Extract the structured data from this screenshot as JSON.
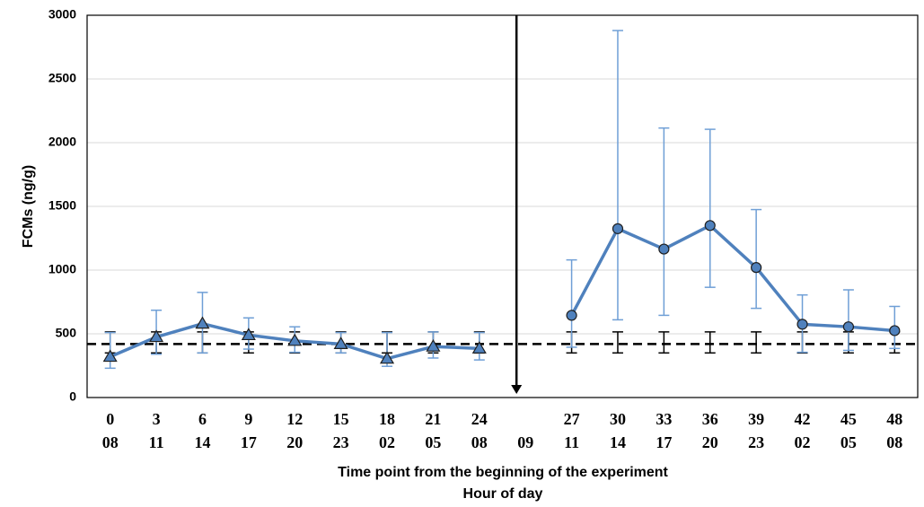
{
  "chart_data": {
    "type": "line",
    "y_label": "FCMs (ng/g)",
    "x_label": "Time point from the beginning of the experiment",
    "x_label_2": "Hour of day",
    "categories": [
      "0",
      "3",
      "6",
      "9",
      "12",
      "15",
      "18",
      "21",
      "24",
      null,
      "27",
      "30",
      "33",
      "36",
      "39",
      "42",
      "45",
      "48"
    ],
    "hours": [
      "08",
      "11",
      "14",
      "17",
      "20",
      "23",
      "02",
      "05",
      "08",
      "09",
      "11",
      "14",
      "17",
      "20",
      "23",
      "02",
      "05",
      "08"
    ],
    "ylim": [
      0,
      3000
    ],
    "yticks": [
      0,
      500,
      1000,
      1500,
      2000,
      2500,
      3000
    ],
    "grid": true,
    "series": [
      {
        "color": "#4f81bd",
        "error_color": "#6f9fd6",
        "marker": "triangle",
        "values": [
          320,
          475,
          580,
          490,
          445,
          420,
          305,
          400,
          385,
          null,
          null,
          null,
          null,
          null,
          null,
          null,
          null,
          null
        ],
        "upper": [
          510,
          685,
          825,
          625,
          555,
          510,
          510,
          515,
          510,
          null,
          null,
          null,
          null,
          null,
          null,
          null,
          null,
          null
        ],
        "lower": [
          230,
          340,
          350,
          380,
          355,
          350,
          245,
          310,
          295,
          null,
          null,
          null,
          null,
          null,
          null,
          null,
          null,
          null
        ]
      },
      {
        "color": "#4f81bd",
        "error_color": "#6f9fd6",
        "marker": "circle",
        "values": [
          null,
          null,
          null,
          null,
          null,
          null,
          null,
          null,
          null,
          null,
          645,
          1325,
          1165,
          1350,
          1020,
          575,
          555,
          525
        ],
        "upper": [
          null,
          null,
          null,
          null,
          null,
          null,
          null,
          null,
          null,
          null,
          1080,
          2880,
          2115,
          2105,
          1475,
          805,
          845,
          715
        ],
        "lower": [
          null,
          null,
          null,
          null,
          null,
          null,
          null,
          null,
          null,
          null,
          395,
          610,
          645,
          865,
          700,
          355,
          370,
          385
        ]
      }
    ],
    "baseline": {
      "value": 420,
      "upper": 515,
      "lower": 350,
      "color": "#000000"
    }
  }
}
